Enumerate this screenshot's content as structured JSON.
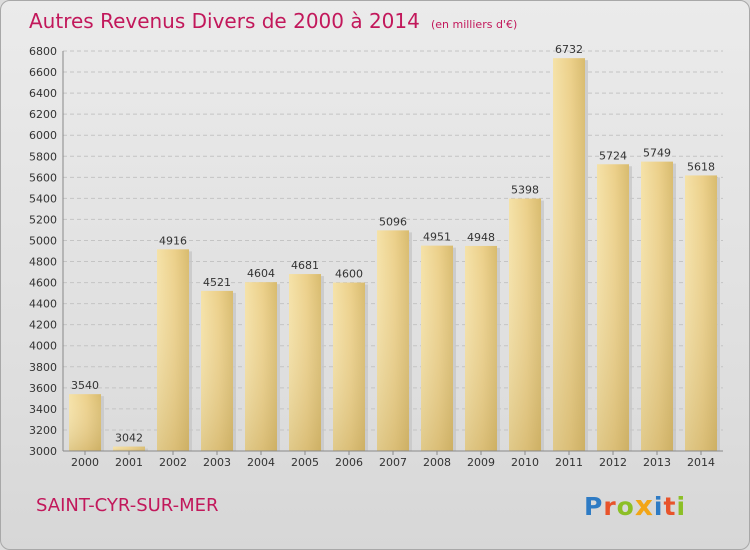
{
  "header": {
    "title": "Autres Revenus Divers de 2000 à 2014",
    "subtitle": "(en milliers d'€)"
  },
  "footer": {
    "commune": "SAINT-CYR-SUR-MER",
    "brand": "Proxiti",
    "brand_letters": [
      {
        "char": "P",
        "color": "#2e7bc4"
      },
      {
        "char": "r",
        "color": "#e8532b"
      },
      {
        "char": "o",
        "color": "#8cbf26"
      },
      {
        "char": "x",
        "color": "#f2a516"
      },
      {
        "char": "i",
        "color": "#2e7bc4"
      },
      {
        "char": "t",
        "color": "#e8532b"
      },
      {
        "char": "i",
        "color": "#8cbf26"
      }
    ]
  },
  "colors": {
    "title": "#c2185b",
    "bar": "#e9cd82",
    "bar_highlight": "#f5e2a8",
    "bar_shadow": "#c9ab60"
  },
  "chart_data": {
    "type": "bar",
    "title": "Autres Revenus Divers de 2000 à 2014",
    "subtitle": "(en milliers d'€)",
    "categories": [
      "2000",
      "2001",
      "2002",
      "2003",
      "2004",
      "2005",
      "2006",
      "2007",
      "2008",
      "2009",
      "2010",
      "2011",
      "2012",
      "2013",
      "2014"
    ],
    "values": [
      3540,
      3042,
      4916,
      4521,
      4604,
      4681,
      4600,
      5096,
      4951,
      4948,
      5398,
      6732,
      5724,
      5749,
      5618
    ],
    "ylim": [
      3000,
      6800
    ],
    "yticks": [
      3000,
      3200,
      3400,
      3600,
      3800,
      4000,
      4200,
      4400,
      4600,
      4800,
      5000,
      5200,
      5400,
      5600,
      5800,
      6000,
      6200,
      6400,
      6600,
      6800
    ],
    "grid": true,
    "data_labels": true
  }
}
